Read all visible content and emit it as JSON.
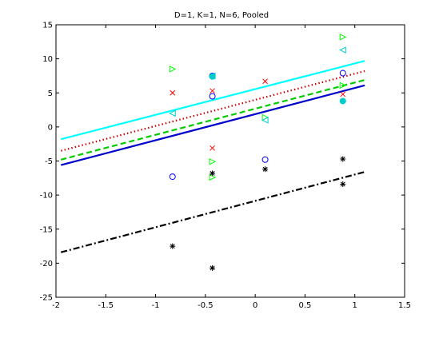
{
  "chart_data": {
    "type": "scatter",
    "title": "D=1, K=1, N=6, Pooled",
    "xlabel": "",
    "ylabel": "",
    "xlim": [
      -2,
      1.5
    ],
    "ylim": [
      -25,
      15
    ],
    "xticks": [
      -2,
      -1.5,
      -1,
      -0.5,
      0,
      0.5,
      1,
      1.5
    ],
    "yticks": [
      -25,
      -20,
      -15,
      -10,
      -5,
      0,
      5,
      10,
      15
    ],
    "xtick_labels": [
      "-2",
      "-1.5",
      "-1",
      "-0.5",
      "0",
      "0.5",
      "1",
      "1.5"
    ],
    "ytick_labels": [
      "-25",
      "-20",
      "-15",
      "-10",
      "-5",
      "0",
      "5",
      "10",
      "15"
    ],
    "grid": false,
    "lines": [
      {
        "color": "#00ffff",
        "style": "solid",
        "x": [
          -1.95,
          1.1
        ],
        "y": [
          -1.8,
          9.7
        ]
      },
      {
        "color": "#cc0000",
        "style": "dotted",
        "x": [
          -1.95,
          1.1
        ],
        "y": [
          -3.5,
          8.2
        ]
      },
      {
        "color": "#00cc00",
        "style": "dashed",
        "x": [
          -1.95,
          1.1
        ],
        "y": [
          -4.8,
          6.9
        ]
      },
      {
        "color": "#0000cc",
        "style": "solid",
        "x": [
          -1.95,
          1.1
        ],
        "y": [
          -5.6,
          6.1
        ]
      },
      {
        "color": "#000000",
        "style": "dashdot",
        "x": [
          -1.95,
          1.1
        ],
        "y": [
          -18.4,
          -6.6
        ]
      }
    ],
    "series": [
      {
        "color": "#0000ff",
        "marker": "circle",
        "x": [
          -0.83,
          -0.43,
          -0.43,
          0.1,
          0.88
        ],
        "y": [
          -7.3,
          4.5,
          7.5,
          -4.8,
          7.9
        ]
      },
      {
        "color": "#ff0000",
        "marker": "x",
        "x": [
          -0.83,
          -0.43,
          -0.43,
          0.1,
          0.88
        ],
        "y": [
          5.0,
          5.3,
          -3.1,
          6.7,
          4.8
        ]
      },
      {
        "color": "#00ff00",
        "marker": "triangle-right",
        "x": [
          -0.83,
          -0.43,
          -0.43,
          0.1,
          0.88,
          0.88
        ],
        "y": [
          8.5,
          -5.1,
          -7.4,
          1.4,
          13.2,
          6.1
        ]
      },
      {
        "color": "#00cccc",
        "marker": "triangle-left",
        "x": [
          -0.83,
          -0.43,
          0.1,
          0.88
        ],
        "y": [
          2.0,
          7.5,
          1.0,
          11.3
        ]
      },
      {
        "color": "#00cccc",
        "marker": "filled-circle",
        "x": [
          -0.43,
          0.88
        ],
        "y": [
          7.4,
          3.8
        ]
      },
      {
        "color": "#000000",
        "marker": "star",
        "x": [
          -0.83,
          -0.43,
          -0.43,
          0.1,
          0.88,
          0.88
        ],
        "y": [
          -17.5,
          -6.8,
          -20.7,
          -6.2,
          -4.7,
          -8.4
        ]
      }
    ]
  }
}
